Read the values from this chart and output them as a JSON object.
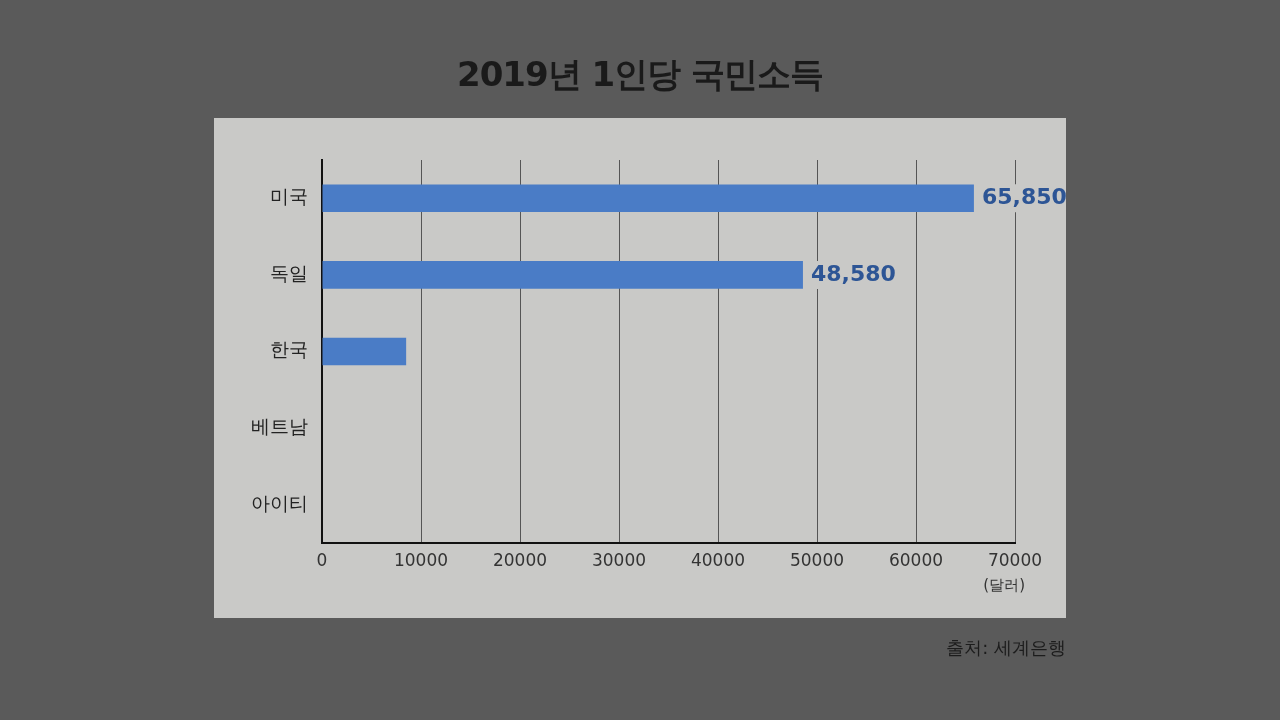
{
  "chart_data": {
    "type": "bar",
    "orientation": "horizontal",
    "title": "2019년 1인당 국민소득",
    "xlabel": "(달러)",
    "categories": [
      "미국",
      "독일",
      "한국",
      "베트남",
      "아이티"
    ],
    "values": [
      65850,
      48580,
      8500,
      null,
      null
    ],
    "value_labels": [
      "65,850",
      "48,580",
      null,
      null,
      null
    ],
    "color": "#4a7cc6",
    "xlim": [
      0,
      70000
    ],
    "xticks": [
      0,
      10000,
      20000,
      30000,
      40000,
      50000,
      60000,
      70000
    ],
    "grid": "x",
    "annotations": [
      "출처: 세계은행"
    ]
  }
}
